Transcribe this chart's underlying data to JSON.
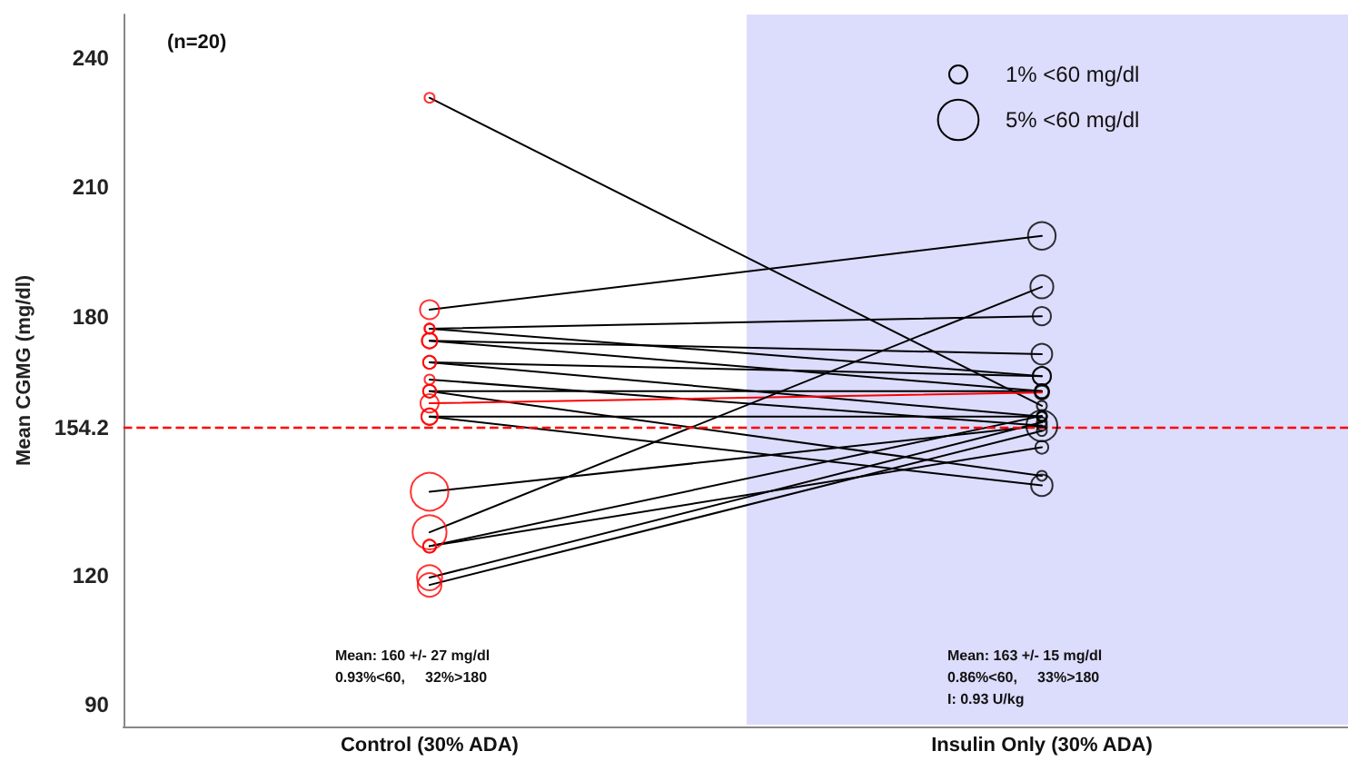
{
  "chart_data": {
    "type": "line",
    "ylabel": "Mean CGMG (mg/dl)",
    "categories": [
      "Control (30% ADA)",
      "Insulin Only (30% ADA)"
    ],
    "ylim": [
      85,
      250
    ],
    "yticks": [
      90,
      120,
      154.2,
      180,
      210,
      240
    ],
    "grid": false,
    "line_style": "solid",
    "size_legend": [
      {
        "value": 1,
        "label": "1% <60 mg/dl"
      },
      {
        "value": 5,
        "label": "5% <60 mg/dl"
      }
    ],
    "ref_lines": [
      {
        "axis": "y",
        "value": 154.2,
        "label": null,
        "color": "#ff0000",
        "line_style": "dashed"
      }
    ],
    "bands": [
      {
        "axis": "x",
        "from": "Insulin Only (30% ADA)",
        "to": "Insulin Only (30% ADA)",
        "label": null,
        "color": "#dcdcfc"
      }
    ],
    "annotations": [
      "(n=20)",
      "Mean: 160 +/- 27 mg/dl\n0.93%<60,     32%>180",
      "Mean: 163 +/- 15 mg/dl\n0.86%<60,     33%>180\nI: 0.93 U/kg"
    ],
    "series": [
      {
        "color": "#000000",
        "values": [
          230.7,
          159.3
        ]
      },
      {
        "color": "#000000",
        "values": [
          181.6,
          198.7
        ]
      },
      {
        "color": "#000000",
        "values": [
          177.2,
          180.1
        ]
      },
      {
        "color": "#000000",
        "values": [
          177.2,
          166.2
        ]
      },
      {
        "color": "#000000",
        "values": [
          174.4,
          171.3
        ]
      },
      {
        "color": "#000000",
        "values": [
          174.4,
          162.7
        ]
      },
      {
        "color": "#000000",
        "values": [
          169.4,
          166.2
        ]
      },
      {
        "color": "#000000",
        "values": [
          169.4,
          156.8
        ]
      },
      {
        "color": "#000000",
        "values": [
          165.4,
          154.7
        ]
      },
      {
        "color": "#000000",
        "values": [
          162.7,
          143.1
        ]
      },
      {
        "color": "#000000",
        "values": [
          162.7,
          162.7
        ]
      },
      {
        "color": "#ff0000",
        "values": [
          159.9,
          162.4
        ]
      },
      {
        "color": "#000000",
        "values": [
          156.8,
          140.9
        ]
      },
      {
        "color": "#000000",
        "values": [
          156.8,
          156.8
        ]
      },
      {
        "color": "#000000",
        "values": [
          139.4,
          154.7
        ]
      },
      {
        "color": "#000000",
        "values": [
          130.0,
          186.9
        ]
      },
      {
        "color": "#000000",
        "values": [
          126.8,
          157.0
        ]
      },
      {
        "color": "#000000",
        "values": [
          126.8,
          149.7
        ]
      },
      {
        "color": "#000000",
        "values": [
          119.5,
          155.5
        ]
      },
      {
        "color": "#000000",
        "values": [
          117.8,
          153.5
        ]
      },
      {
        "type": "bubble",
        "color": "#ff0000",
        "x": [
          "Control (30% ADA)",
          "Control (30% ADA)",
          "Control (30% ADA)",
          "Control (30% ADA)",
          "Control (30% ADA)",
          "Control (30% ADA)",
          "Control (30% ADA)",
          "Control (30% ADA)",
          "Control (30% ADA)",
          "Control (30% ADA)",
          "Control (30% ADA)",
          "Control (30% ADA)",
          "Control (30% ADA)",
          "Control (30% ADA)",
          "Control (30% ADA)",
          "Control (30% ADA)",
          "Control (30% ADA)",
          "Control (30% ADA)",
          "Control (30% ADA)",
          "Control (30% ADA)"
        ],
        "values": [
          230.7,
          181.6,
          177.2,
          177.2,
          174.4,
          174.4,
          169.4,
          169.4,
          165.4,
          162.7,
          162.7,
          159.9,
          156.8,
          156.8,
          139.4,
          130.0,
          126.8,
          126.8,
          119.5,
          117.8
        ],
        "sizes": [
          0.3,
          1.1,
          0.3,
          0.3,
          0.7,
          0.7,
          0.5,
          0.5,
          0.3,
          0.5,
          0.5,
          1,
          0.8,
          0.8,
          4.3,
          3.5,
          0.5,
          0.5,
          1.9,
          1.7
        ]
      },
      {
        "type": "bubble",
        "color": "#000000",
        "x": [
          "Insulin Only (30% ADA)",
          "Insulin Only (30% ADA)",
          "Insulin Only (30% ADA)",
          "Insulin Only (30% ADA)",
          "Insulin Only (30% ADA)",
          "Insulin Only (30% ADA)",
          "Insulin Only (30% ADA)",
          "Insulin Only (30% ADA)",
          "Insulin Only (30% ADA)",
          "Insulin Only (30% ADA)",
          "Insulin Only (30% ADA)",
          "Insulin Only (30% ADA)",
          "Insulin Only (30% ADA)",
          "Insulin Only (30% ADA)",
          "Insulin Only (30% ADA)",
          "Insulin Only (30% ADA)",
          "Insulin Only (30% ADA)",
          "Insulin Only (30% ADA)",
          "Insulin Only (30% ADA)",
          "Insulin Only (30% ADA)"
        ],
        "values": [
          159.3,
          198.7,
          180.1,
          166.2,
          171.3,
          162.7,
          166.2,
          156.8,
          154.7,
          143.1,
          162.7,
          162.4,
          140.9,
          156.8,
          154.7,
          186.9,
          157.0,
          149.7,
          155.5,
          153.5
        ],
        "sizes": [
          0.3,
          2.3,
          1,
          1,
          1.3,
          0.6,
          1,
          0.3,
          2.9,
          0.3,
          0.6,
          0.6,
          1.4,
          0.3,
          0.3,
          1.6,
          0.3,
          0.5,
          0.3,
          0.3
        ]
      }
    ]
  }
}
